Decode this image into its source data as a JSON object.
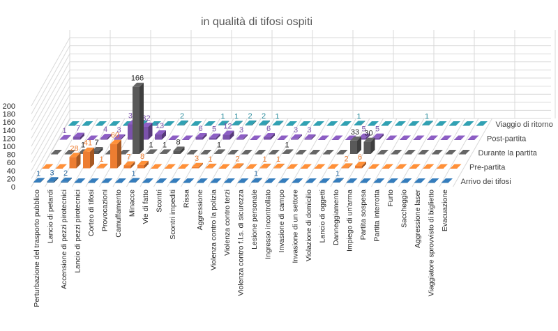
{
  "chart_data": {
    "type": "bar3d",
    "title": "in qualità di tifosi ospiti",
    "ylim": [
      0,
      200
    ],
    "yticks": [
      0,
      20,
      40,
      60,
      80,
      100,
      120,
      140,
      160,
      180,
      200
    ],
    "grid": true,
    "categories": [
      "Perturbazione del trasporto pubblico",
      "Lancio di petardi",
      "Accensione di pezzi pirotecnici",
      "Lancio di pezzi pirotecnici",
      "Corteo di tifosi",
      "Provocazioni",
      "Camuffamento",
      "Minacce",
      "Vie di fatto",
      "Scontri",
      "Scontri impediti",
      "Rissa",
      "Aggressione",
      "Violenza contro la polizia",
      "Violenza contro terzi",
      "Violenza contro f.l.s. di sicurezza",
      "Lesione personale",
      "Ingresso incontrollato",
      "Invasione di campo",
      "Invasione di un settore",
      "Violazione di domicilio",
      "Lancio di oggetti",
      "Danneggiamento",
      "Impiego di un'arma",
      "Partita sospesa",
      "Partita interrotta",
      "Furto",
      "Saccheggio",
      "Aggressione laser",
      "Viaggiatore sprovvisto di biglietto",
      "Evacuazione"
    ],
    "series": [
      {
        "name": "Arrivo dei tifosi",
        "color": "#2e6da4",
        "values": [
          1,
          3,
          2,
          0,
          0,
          0,
          0,
          1,
          0,
          0,
          0,
          0,
          0,
          0,
          0,
          0,
          1,
          0,
          0,
          0,
          0,
          0,
          1,
          0,
          0,
          0,
          0,
          0,
          0,
          0,
          0
        ]
      },
      {
        "name": "Pre-partita",
        "color": "#ed7d31",
        "values": [
          0,
          0,
          28,
          41,
          1,
          60,
          7,
          8,
          0,
          0,
          0,
          3,
          1,
          0,
          2,
          0,
          1,
          1,
          0,
          0,
          0,
          0,
          2,
          6,
          0,
          0,
          0,
          0,
          0,
          0,
          0
        ]
      },
      {
        "name": "Durante la partita",
        "color": "#595959",
        "values": [
          0,
          0,
          1,
          7,
          0,
          0,
          166,
          1,
          1,
          8,
          0,
          0,
          1,
          0,
          0,
          0,
          0,
          1,
          0,
          0,
          0,
          0,
          33,
          30,
          0,
          0,
          0,
          0,
          0,
          0,
          0
        ]
      },
      {
        "name": "Post-partita",
        "color": "#7b52ab",
        "values": [
          1,
          7,
          0,
          4,
          3,
          38,
          32,
          13,
          0,
          0,
          6,
          5,
          12,
          3,
          0,
          6,
          0,
          3,
          3,
          0,
          0,
          0,
          5,
          5,
          0,
          0,
          0,
          0,
          0,
          0,
          0
        ]
      },
      {
        "name": "Viaggio di ritorno",
        "color": "#2a8c9c",
        "values": [
          0,
          0,
          0,
          0,
          0,
          2,
          0,
          0,
          2,
          0,
          0,
          1,
          1,
          2,
          2,
          1,
          0,
          0,
          0,
          0,
          0,
          1,
          0,
          0,
          0,
          0,
          1,
          0,
          0,
          0,
          0
        ]
      }
    ]
  }
}
